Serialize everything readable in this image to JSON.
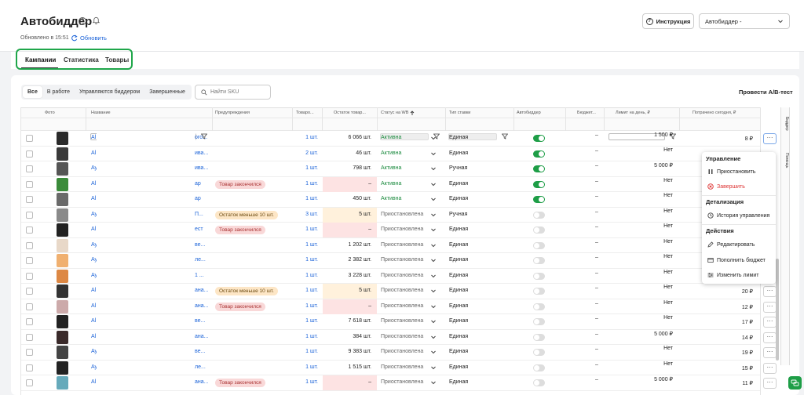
{
  "header": {
    "title": "Автобиддер",
    "updated": "Обновлено в 15:51",
    "refresh_label": "Обновить",
    "instruction_label": "Инструкция",
    "selector_value": "Автобиддер -"
  },
  "tabs": [
    {
      "label": "Кампании"
    },
    {
      "label": "Статистика"
    },
    {
      "label": "Товары"
    }
  ],
  "filters": [
    {
      "label": "Все"
    },
    {
      "label": "В работе"
    },
    {
      "label": "Управляются биддером"
    },
    {
      "label": "Завершенные"
    }
  ],
  "search": {
    "placeholder": "Найти SKU"
  },
  "ab_test_label": "Провести A/B-тест",
  "columns": {
    "photo": "Фото",
    "name": "Название",
    "warnings": "Предупреждения",
    "items": "Товаро...",
    "stock": "Остаток товар...",
    "status": "Статус на WB",
    "rate": "Тип ставки",
    "bidder": "Автобиддер",
    "budget": "Бюджет...",
    "limit": "Лимит на день, ₽",
    "spent": "Потрачено сегодня, ₽"
  },
  "rows": [
    {
      "name_a": "Al",
      "name_b": "ого...",
      "warning": "",
      "warn_type": "",
      "items": "1 шт.",
      "stock": "6 066 шт.",
      "stock_bg": "",
      "status": "Активна",
      "status_type": "green",
      "rate": "Единая",
      "bidder": true,
      "budget": "–",
      "limit": "1 500 ₽",
      "spent": "8 ₽"
    },
    {
      "name_a": "Al",
      "name_b": "ива...",
      "warning": "",
      "warn_type": "",
      "items": "2 шт.",
      "stock": "46 шт.",
      "stock_bg": "",
      "status": "Активна",
      "status_type": "green",
      "rate": "Единая",
      "bidder": true,
      "budget": "–",
      "limit": "Нет",
      "spent": ""
    },
    {
      "name_a": "Ay",
      "name_b": "ива...",
      "warning": "",
      "warn_type": "",
      "items": "1 шт.",
      "stock": "798 шт.",
      "stock_bg": "",
      "status": "Активна",
      "status_type": "green",
      "rate": "Ручная",
      "bidder": true,
      "budget": "–",
      "limit": "5 000 ₽",
      "spent": ""
    },
    {
      "name_a": "Al",
      "name_b": "ар",
      "warning": "Товар закончился",
      "warn_type": "red",
      "items": "1 шт.",
      "stock": "–",
      "stock_bg": "red",
      "status": "Активна",
      "status_type": "green",
      "rate": "Единая",
      "bidder": true,
      "budget": "–",
      "limit": "Нет",
      "spent": ""
    },
    {
      "name_a": "Al",
      "name_b": "ар",
      "warning": "",
      "warn_type": "",
      "items": "1 шт.",
      "stock": "450 шт.",
      "stock_bg": "",
      "status": "Активна",
      "status_type": "green",
      "rate": "Единая",
      "bidder": true,
      "budget": "–",
      "limit": "Нет",
      "spent": ""
    },
    {
      "name_a": "Ay",
      "name_b": "П...",
      "warning": "Остаток меньше 10 шт.",
      "warn_type": "orange",
      "items": "3 шт.",
      "stock": "5 шт.",
      "stock_bg": "orange",
      "status": "Приостановлена",
      "status_type": "grey",
      "rate": "Ручная",
      "bidder": false,
      "budget": "–",
      "limit": "Нет",
      "spent": ""
    },
    {
      "name_a": "Al",
      "name_b": "ест",
      "warning": "Товар закончился",
      "warn_type": "red",
      "items": "1 шт.",
      "stock": "–",
      "stock_bg": "red",
      "status": "Приостановлена",
      "status_type": "grey",
      "rate": "Единая",
      "bidder": false,
      "budget": "–",
      "limit": "Нет",
      "spent": ""
    },
    {
      "name_a": "Ay",
      "name_b": "ве...",
      "warning": "",
      "warn_type": "",
      "items": "1 шт.",
      "stock": "1 202 шт.",
      "stock_bg": "",
      "status": "Приостановлена",
      "status_type": "grey",
      "rate": "Единая",
      "bidder": false,
      "budget": "–",
      "limit": "Нет",
      "spent": ""
    },
    {
      "name_a": "Ay",
      "name_b": "ле...",
      "warning": "",
      "warn_type": "",
      "items": "1 шт.",
      "stock": "2 382 шт.",
      "stock_bg": "",
      "status": "Приостановлена",
      "status_type": "grey",
      "rate": "Единая",
      "bidder": false,
      "budget": "–",
      "limit": "Нет",
      "spent": ""
    },
    {
      "name_a": "Ay",
      "name_b": "1 ...",
      "warning": "",
      "warn_type": "",
      "items": "1 шт.",
      "stock": "3 228 шт.",
      "stock_bg": "",
      "status": "Приостановлена",
      "status_type": "grey",
      "rate": "Единая",
      "bidder": false,
      "budget": "–",
      "limit": "Нет",
      "spent": ""
    },
    {
      "name_a": "Al",
      "name_b": "ана...",
      "warning": "Остаток меньше 10 шт.",
      "warn_type": "orange",
      "items": "1 шт.",
      "stock": "5 шт.",
      "stock_bg": "orange",
      "status": "Приостановлена",
      "status_type": "grey",
      "rate": "Единая",
      "bidder": false,
      "budget": "–",
      "limit": "Нет",
      "spent": "20 ₽"
    },
    {
      "name_a": "Al",
      "name_b": "ана...",
      "warning": "Товар закончился",
      "warn_type": "red",
      "items": "1 шт.",
      "stock": "–",
      "stock_bg": "red",
      "status": "Приостановлена",
      "status_type": "grey",
      "rate": "Единая",
      "bidder": false,
      "budget": "–",
      "limit": "Нет",
      "spent": "12 ₽"
    },
    {
      "name_a": "Al",
      "name_b": "ве...",
      "warning": "",
      "warn_type": "",
      "items": "1 шт.",
      "stock": "7 618 шт.",
      "stock_bg": "",
      "status": "Приостановлена",
      "status_type": "grey",
      "rate": "Единая",
      "bidder": false,
      "budget": "–",
      "limit": "Нет",
      "spent": "17 ₽"
    },
    {
      "name_a": "Al",
      "name_b": "ана...",
      "warning": "",
      "warn_type": "",
      "items": "1 шт.",
      "stock": "384 шт.",
      "stock_bg": "",
      "status": "Приостановлена",
      "status_type": "grey",
      "rate": "Единая",
      "bidder": false,
      "budget": "–",
      "limit": "5 000 ₽",
      "spent": "14 ₽"
    },
    {
      "name_a": "Ay",
      "name_b": "ве...",
      "warning": "",
      "warn_type": "",
      "items": "1 шт.",
      "stock": "9 383 шт.",
      "stock_bg": "",
      "status": "Приостановлена",
      "status_type": "grey",
      "rate": "Единая",
      "bidder": false,
      "budget": "–",
      "limit": "Нет",
      "spent": "19 ₽"
    },
    {
      "name_a": "Ay",
      "name_b": "ле...",
      "warning": "",
      "warn_type": "",
      "items": "1 шт.",
      "stock": "1 515 шт.",
      "stock_bg": "",
      "status": "Приостановлена",
      "status_type": "grey",
      "rate": "Единая",
      "bidder": false,
      "budget": "–",
      "limit": "Нет",
      "spent": "15 ₽"
    },
    {
      "name_a": "Al",
      "name_b": "ана...",
      "warning": "Товар закончился",
      "warn_type": "red",
      "items": "1 шт.",
      "stock": "–",
      "stock_bg": "red",
      "status": "Приостановлена",
      "status_type": "grey",
      "rate": "Единая",
      "bidder": false,
      "budget": "–",
      "limit": "5 000 ₽",
      "spent": "11 ₽"
    }
  ],
  "menu": {
    "section1": "Управление",
    "pause": "Приостановить",
    "finish": "Завершить",
    "section2": "Детализация",
    "history": "История управления",
    "section3": "Действия",
    "edit": "Редактировать",
    "topup": "Пополнить бюджет",
    "change_limit": "Изменить лимит"
  },
  "side_tabs": {
    "bidder": "Биддер",
    "help": "Помощь"
  },
  "more_label": "···",
  "colors": {
    "accent": "#1a62d8",
    "green": "#1e9e47",
    "highlight": "#1fa64a"
  }
}
